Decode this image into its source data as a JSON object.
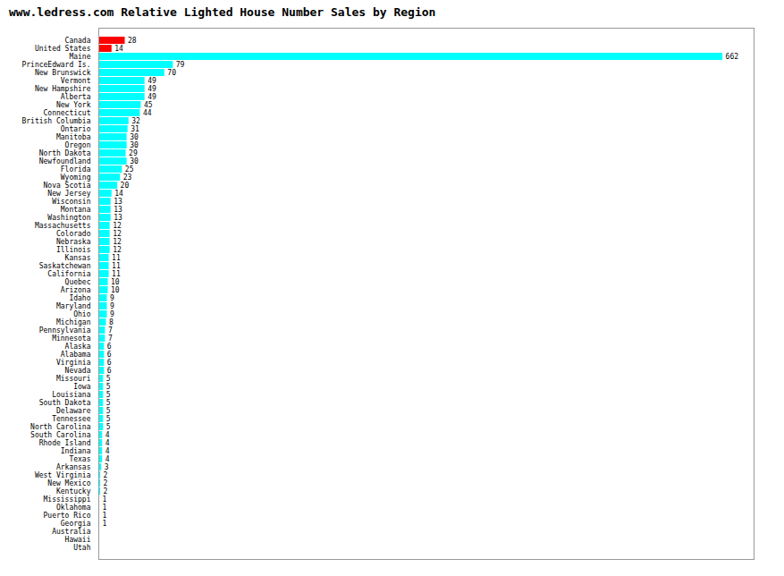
{
  "chart_data": {
    "type": "bar",
    "orientation": "horizontal",
    "title": "www.ledress.com Relative Lighted House Number Sales by Region",
    "categories": [
      "Canada",
      "United States",
      "Maine",
      "PrinceEdward Is.",
      "New Brunswick",
      "Vermont",
      "New Hampshire",
      "Alberta",
      "New York",
      "Connecticut",
      "British Columbia",
      "Ontario",
      "Manitoba",
      "Oregon",
      "North Dakota",
      "Newfoundland",
      "Florida",
      "Wyoming",
      "Nova Scotia",
      "New Jersey",
      "Wisconsin",
      "Montana",
      "Washington",
      "Massachusetts",
      "Colorado",
      "Nebraska",
      "Illinois",
      "Kansas",
      "Saskatchewan",
      "California",
      "Quebec",
      "Arizona",
      "Idaho",
      "Maryland",
      "Ohio",
      "Michigan",
      "Pennsylvania",
      "Minnesota",
      "Alaska",
      "Alabama",
      "Virginia",
      "Nevada",
      "Missouri",
      "Iowa",
      "Louisiana",
      "South Dakota",
      "Delaware",
      "Tennessee",
      "North Carolina",
      "South Carolina",
      "Rhode Island",
      "Indiana",
      "Texas",
      "Arkansas",
      "West Virginia",
      "New Mexico",
      "Kentucky",
      "Mississippi",
      "Oklahoma",
      "Puerto Rico",
      "Georgia",
      "Australia",
      "Hawaii",
      "Utah"
    ],
    "values": [
      28,
      14,
      662,
      79,
      70,
      49,
      49,
      49,
      45,
      44,
      32,
      31,
      30,
      30,
      29,
      30,
      25,
      23,
      20,
      14,
      13,
      13,
      13,
      12,
      12,
      12,
      12,
      11,
      11,
      11,
      10,
      10,
      9,
      9,
      9,
      8,
      7,
      7,
      6,
      6,
      6,
      6,
      5,
      5,
      5,
      5,
      5,
      5,
      5,
      4,
      4,
      4,
      4,
      3,
      2,
      2,
      2,
      1,
      1,
      1,
      1,
      0,
      0,
      0
    ],
    "value_labels": [
      "28",
      "14",
      "662",
      "79",
      "70",
      "49",
      "49",
      "49",
      "45",
      "44",
      "32",
      "31",
      "30",
      "30",
      "29",
      "30",
      "25",
      "23",
      "20",
      "14",
      "13",
      "13",
      "13",
      "12",
      "12",
      "12",
      "12",
      "11",
      "11",
      "11",
      "10",
      "10",
      "9",
      "9",
      "9",
      "8",
      "7",
      "7",
      "6",
      "6",
      "6",
      "6",
      "5",
      "5",
      "5",
      "5",
      "5",
      "5",
      "5",
      "4",
      "4",
      "4",
      "4",
      "3",
      "2",
      "2",
      "2",
      "1",
      "1",
      "1",
      "1",
      null,
      null,
      null
    ],
    "colors": [
      "#FF0000",
      "#FF0000",
      "#00FFFF",
      "#00FFFF",
      "#00FFFF",
      "#00FFFF",
      "#00FFFF",
      "#00FFFF",
      "#00FFFF",
      "#00FFFF",
      "#00FFFF",
      "#00FFFF",
      "#00FFFF",
      "#00FFFF",
      "#00FFFF",
      "#00FFFF",
      "#00FFFF",
      "#00FFFF",
      "#00FFFF",
      "#00FFFF",
      "#00FFFF",
      "#00FFFF",
      "#00FFFF",
      "#00FFFF",
      "#00FFFF",
      "#00FFFF",
      "#00FFFF",
      "#00FFFF",
      "#00FFFF",
      "#00FFFF",
      "#00FFFF",
      "#00FFFF",
      "#00FFFF",
      "#00FFFF",
      "#00FFFF",
      "#00FFFF",
      "#00FFFF",
      "#00FFFF",
      "#00FFFF",
      "#00FFFF",
      "#00FFFF",
      "#00FFFF",
      "#00FFFF",
      "#00FFFF",
      "#00FFFF",
      "#00FFFF",
      "#00FFFF",
      "#00FFFF",
      "#00FFFF",
      "#00FFFF",
      "#00FFFF",
      "#00FFFF",
      "#00FFFF",
      "#00FFFF",
      "#00FFFF",
      "#00FFFF",
      "#00FFFF",
      "#00FFFF",
      "#00FFFF",
      "#00FFFF",
      "#00FFFF",
      "#00FFFF",
      "#00FFFF",
      "#00FFFF"
    ],
    "xlim": [
      0,
      695.1
    ],
    "data_labels": true,
    "tick_labels": "y"
  }
}
